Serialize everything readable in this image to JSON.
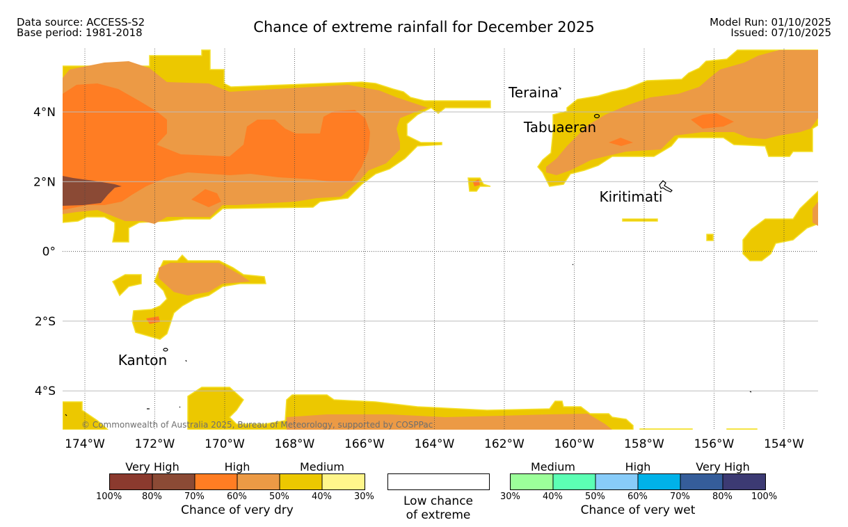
{
  "header": {
    "data_source": "Data source: ACCESS-S2",
    "base_period": "Base period: 1981-2018",
    "title": "Chance of extreme rainfall for December 2025",
    "model_run": "Model Run: 01/10/2025",
    "issued": "Issued: 07/10/2025"
  },
  "map": {
    "lon_ticks": [
      "174°W",
      "172°W",
      "170°W",
      "168°W",
      "166°W",
      "164°W",
      "162°W",
      "160°W",
      "158°W",
      "156°W",
      "154°W"
    ],
    "lat_ticks": [
      "4°N",
      "2°N",
      "0°",
      "2°S",
      "4°S"
    ],
    "places": {
      "teraina": "Teraina",
      "tabuaeran": "Tabuaeran",
      "kiritimati": "Kiritimati",
      "kanton": "Kanton"
    },
    "copyright": "© Commonwealth of Australia 2025, Bureau of Meteorology, supported by COSPPac",
    "colors": {
      "dry_very_high_1": "#8b3a2e",
      "dry_very_high_2": "#8b4a35",
      "dry_high_1": "#ff7d23",
      "dry_high_2": "#ec9a45",
      "dry_medium_1": "#ecc800",
      "dry_medium_2": "#fff68b",
      "wet_medium_1": "#9cff9a",
      "wet_medium_2": "#5cffb4",
      "wet_high_1": "#88ccf9",
      "wet_high_2": "#00b2e9",
      "wet_very_high_1": "#355d9a",
      "wet_very_high_2": "#3c3a73"
    }
  },
  "legend": {
    "dry": {
      "groups": [
        "Very High",
        "High",
        "Medium"
      ],
      "ticks": [
        "100%",
        "80%",
        "70%",
        "60%",
        "50%",
        "40%",
        "30%"
      ],
      "caption": "Chance of very dry"
    },
    "low": {
      "line1": "Low chance",
      "line2": "of extreme"
    },
    "wet": {
      "groups": [
        "Medium",
        "High",
        "Very High"
      ],
      "ticks": [
        "30%",
        "40%",
        "50%",
        "60%",
        "70%",
        "80%",
        "100%"
      ],
      "caption": "Chance of very wet"
    }
  }
}
